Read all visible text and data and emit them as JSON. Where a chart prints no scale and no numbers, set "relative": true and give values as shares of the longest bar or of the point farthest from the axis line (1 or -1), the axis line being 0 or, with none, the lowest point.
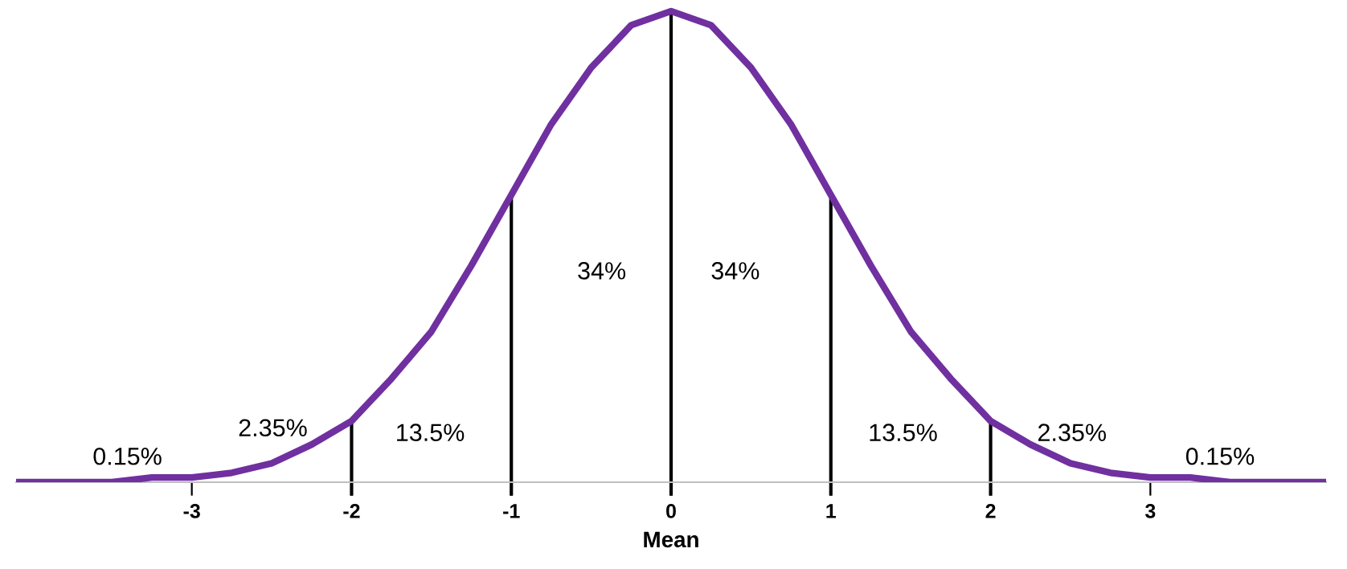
{
  "chart_data": {
    "type": "line",
    "xlabel": "Mean",
    "relative": true,
    "series": [
      {
        "color": "#7030a0",
        "x": [
          -4.1,
          -4,
          -3.75,
          -3.5,
          -3.25,
          -3,
          -2.75,
          -2.5,
          -2.25,
          -2,
          -1.75,
          -1.5,
          -1.25,
          -1,
          -0.75,
          -0.5,
          -0.25,
          0,
          0.25,
          0.5,
          0.75,
          1,
          1.25,
          1.5,
          1.75,
          2,
          2.25,
          2.5,
          2.75,
          3,
          3.25,
          3.5,
          3.75,
          4,
          4.1
        ],
        "values": [
          0,
          0,
          0,
          0,
          0.01,
          0.01,
          0.02,
          0.04,
          0.08,
          0.13,
          0.22,
          0.32,
          0.46,
          0.61,
          0.76,
          0.88,
          0.97,
          1,
          0.97,
          0.88,
          0.76,
          0.61,
          0.46,
          0.32,
          0.22,
          0.13,
          0.08,
          0.04,
          0.02,
          0.01,
          0.01,
          0,
          0,
          0,
          0
        ]
      }
    ],
    "xlim": [
      -4.1,
      4.1
    ],
    "xticks": [
      -3,
      -2,
      -1,
      0,
      1,
      2,
      3
    ],
    "ref_lines": [
      {
        "axis": "x",
        "value": -2,
        "color": "#000000"
      },
      {
        "axis": "x",
        "value": -1,
        "color": "#000000"
      },
      {
        "axis": "x",
        "value": 0,
        "color": "#000000"
      },
      {
        "axis": "x",
        "value": 1,
        "color": "#000000"
      },
      {
        "axis": "x",
        "value": 2,
        "color": "#000000"
      }
    ],
    "annotations": [
      "0.15%",
      "2.35%",
      "13.5%",
      "34%",
      "34%",
      "13.5%",
      "2.35%",
      "0.15%"
    ],
    "grid": false,
    "legend": false,
    "line_style": "solid",
    "marker": "none"
  }
}
